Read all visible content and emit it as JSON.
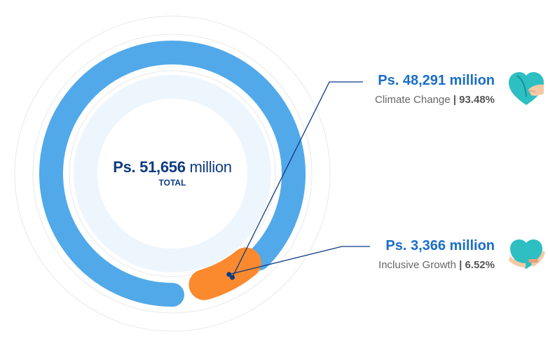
{
  "chart_data": {
    "type": "donut",
    "total": {
      "value": "Ps. 51,656",
      "unit": "million",
      "label": "TOTAL"
    },
    "categories": [
      "Climate Change",
      "Inclusive Growth"
    ],
    "values": [
      48291,
      3366
    ],
    "percentages": [
      93.48,
      6.52
    ],
    "slices": [
      {
        "category": "Climate Change",
        "amount_label": "Ps. 48,291 million",
        "percent_label": "93.48%",
        "value": 48291,
        "percent": 93.48,
        "color": "#52a9e9"
      },
      {
        "category": "Inclusive Growth",
        "amount_label": "Ps. 3,366 million",
        "percent_label": "6.52%",
        "value": 3366,
        "percent": 6.52,
        "color": "#fb8a2e"
      }
    ],
    "separator": "|"
  },
  "colors": {
    "climate": "#52a9e9",
    "inclusive": "#fb8a2e",
    "leader_line": "#0d3b82",
    "center_fill": "#eef6fd",
    "guide_ring": "#e8e8e8"
  },
  "icons": {
    "climate": "leaf-heart-icon",
    "inclusive": "hands-heart-icon"
  }
}
